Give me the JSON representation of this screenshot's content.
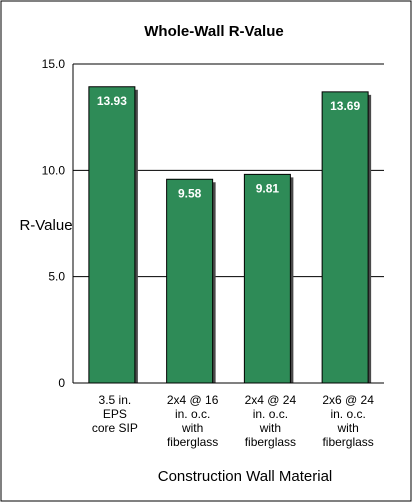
{
  "chart_data": {
    "type": "bar",
    "title": "Whole-Wall R-Value",
    "xlabel": "Construction Wall Material",
    "ylabel": "R-Value",
    "ylim": [
      0,
      15
    ],
    "yticks": [
      "0",
      "5.0",
      "10.0",
      "15.0"
    ],
    "ytick_values": [
      0,
      5,
      10,
      15
    ],
    "grid": true,
    "categories": [
      [
        "3.5 in.",
        "EPS",
        "core SIP"
      ],
      [
        "2x4 @ 16",
        "in. o.c.",
        "with",
        "fiberglass"
      ],
      [
        "2x4 @ 24",
        "in. o.c.",
        "with",
        "fiberglass"
      ],
      [
        "2x6 @ 24",
        "in. o.c.",
        "with",
        "fiberglass"
      ]
    ],
    "values": [
      13.93,
      9.58,
      9.81,
      13.69
    ],
    "data_labels": [
      "13.93",
      "9.58",
      "9.81",
      "13.69"
    ],
    "colors": {
      "bar": "#2e8b57",
      "bar_edge": "#000000",
      "grid": "#000000",
      "frame": "#000000",
      "background": "#ffffff"
    }
  }
}
